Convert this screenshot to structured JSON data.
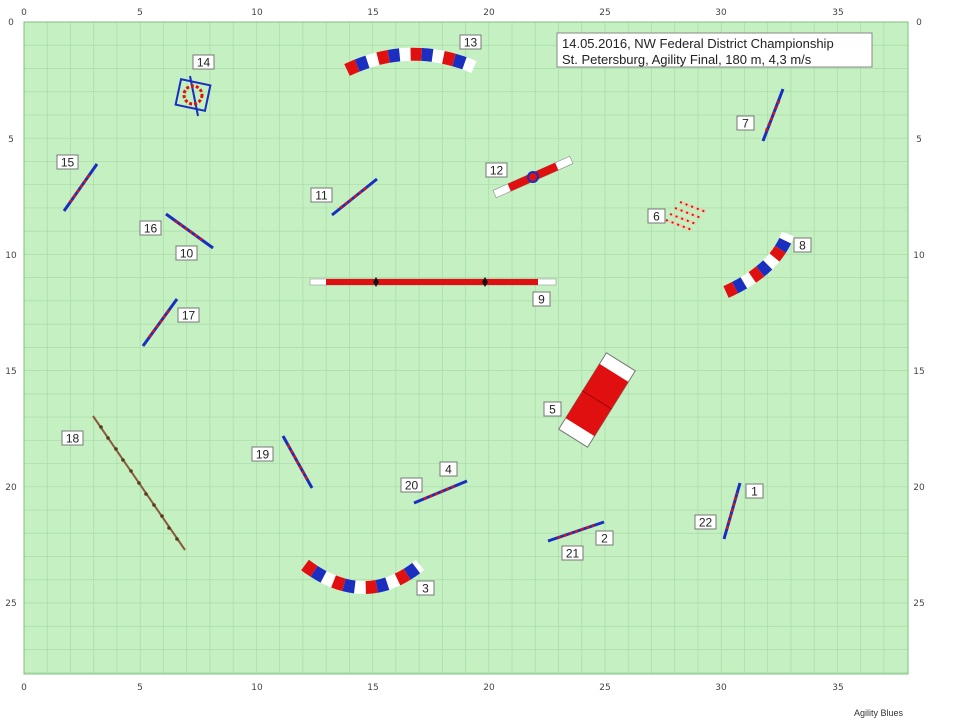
{
  "info": {
    "line1": "14.05.2016, NW Federal District Championship",
    "line2": "St. Petersburg, Agility Final, 180 m, 4,3 m/s"
  },
  "footer": "Agility Blues",
  "axes": {
    "x_ticks": [
      "0",
      "5",
      "10",
      "15",
      "20",
      "25",
      "30",
      "35"
    ],
    "y_ticks": [
      "0",
      "5",
      "10",
      "15",
      "20",
      "25"
    ]
  },
  "numbers": [
    "1",
    "2",
    "3",
    "4",
    "5",
    "6",
    "7",
    "8",
    "9",
    "10",
    "11",
    "12",
    "13",
    "14",
    "15",
    "16",
    "17",
    "18",
    "19",
    "20",
    "21",
    "22"
  ],
  "colors": {
    "field": "#c4f0c2",
    "grid": "#a9dba7",
    "red": "#e01010",
    "blue": "#1a2fc0",
    "weave": "#8a5a3a"
  }
}
